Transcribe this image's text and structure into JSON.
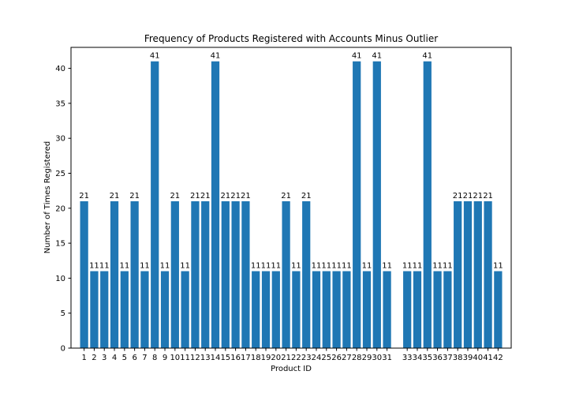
{
  "chart_data": {
    "type": "bar",
    "title": "Frequency of Products Registered with Accounts Minus Outlier",
    "xlabel": "Product ID",
    "ylabel": "Number of Times Registered",
    "ylim": [
      0,
      43
    ],
    "yticks": [
      0,
      5,
      10,
      15,
      20,
      25,
      30,
      35,
      40
    ],
    "xlim": [
      -0.3,
      43.3
    ],
    "grid": false,
    "bar_color": "#1f77b4",
    "categories": [
      1,
      2,
      3,
      4,
      5,
      6,
      7,
      8,
      9,
      10,
      11,
      12,
      13,
      14,
      15,
      16,
      17,
      18,
      19,
      20,
      21,
      22,
      23,
      24,
      25,
      26,
      27,
      28,
      29,
      30,
      31,
      33,
      34,
      35,
      36,
      37,
      38,
      39,
      40,
      41,
      42
    ],
    "values": [
      21,
      11,
      11,
      21,
      11,
      21,
      11,
      41,
      11,
      21,
      11,
      21,
      21,
      41,
      21,
      21,
      21,
      11,
      11,
      11,
      21,
      11,
      21,
      11,
      11,
      11,
      11,
      41,
      11,
      41,
      11,
      11,
      11,
      41,
      11,
      11,
      21,
      21,
      21,
      21,
      11
    ],
    "data_labels": [
      "21",
      "11",
      "11",
      "21",
      "11",
      "21",
      "11",
      "41",
      "11",
      "21",
      "11",
      "21",
      "21",
      "41",
      "21",
      "21",
      "21",
      "11",
      "11",
      "11",
      "21",
      "11",
      "21",
      "11",
      "11",
      "11",
      "11",
      "41",
      "11",
      "41",
      "11",
      "11",
      "11",
      "41",
      "11",
      "11",
      "21",
      "21",
      "21",
      "21",
      "11"
    ]
  }
}
